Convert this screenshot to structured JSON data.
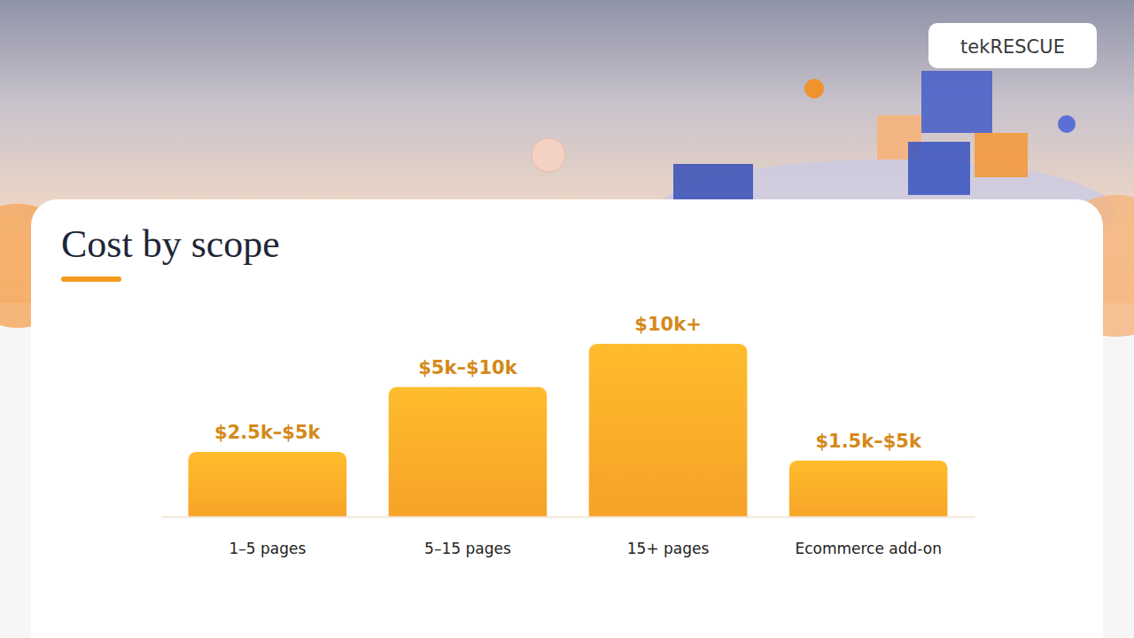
{
  "brand": "tekRESCUE",
  "chart_data": {
    "type": "bar",
    "title": "Cost by scope",
    "categories": [
      "1–5 pages",
      "5–15 pages",
      "15+ pages",
      "Ecommerce add-on"
    ],
    "values": [
      3.75,
      7.5,
      10,
      3.25
    ],
    "value_labels": [
      "$2.5k–$5k",
      "$5k–$10k",
      "$10k+",
      "$1.5k–$5k"
    ],
    "color": "#fea628",
    "ylim": [
      0,
      10
    ],
    "data_labels": true,
    "tick_labels": "x",
    "grid": false
  }
}
